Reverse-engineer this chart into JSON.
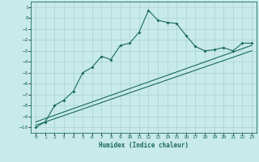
{
  "title": "",
  "xlabel": "Humidex (Indice chaleur)",
  "xlim": [
    -0.5,
    23.5
  ],
  "ylim": [
    -10.5,
    1.5
  ],
  "background_color": "#c8eae8",
  "grid_color": "#a8d4d0",
  "line_color": "#1a6b5a",
  "x_ticks": [
    0,
    1,
    2,
    3,
    4,
    5,
    6,
    7,
    8,
    9,
    10,
    11,
    12,
    13,
    14,
    15,
    16,
    17,
    18,
    19,
    20,
    21,
    22,
    23
  ],
  "y_ticks": [
    1,
    0,
    -1,
    -2,
    -3,
    -4,
    -5,
    -6,
    -7,
    -8,
    -9,
    -10
  ],
  "curve1_x": [
    0,
    1,
    2,
    3,
    4,
    5,
    6,
    7,
    8,
    9,
    10,
    11,
    12,
    13,
    14,
    15,
    16,
    17,
    18,
    19,
    20,
    21,
    22,
    23
  ],
  "curve1_y": [
    -10,
    -9.5,
    -8,
    -7.5,
    -6.7,
    -5,
    -4.5,
    -3.5,
    -3.8,
    -2.5,
    -2.3,
    -1.3,
    0.7,
    -0.2,
    -0.4,
    -0.5,
    -1.6,
    -2.6,
    -3.0,
    -2.9,
    -2.7,
    -3.0,
    -2.3,
    -2.3
  ],
  "curve2_x": [
    0,
    23
  ],
  "curve2_y": [
    -9.5,
    -2.5
  ],
  "curve3_x": [
    0,
    23
  ],
  "curve3_y": [
    -9.8,
    -3.0
  ],
  "marker_style": "D",
  "marker_size": 2.0,
  "linewidth": 0.8
}
